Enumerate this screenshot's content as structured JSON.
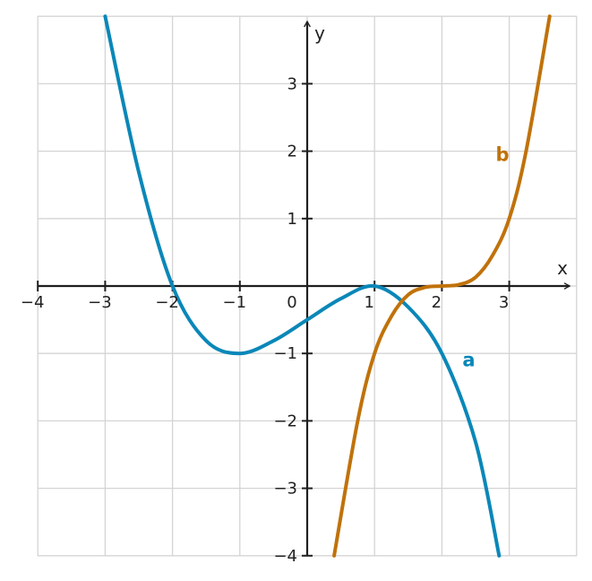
{
  "chart_data": {
    "type": "line",
    "xlabel": "x",
    "ylabel": "y",
    "xlim": [
      -4,
      4
    ],
    "ylim": [
      -4,
      4
    ],
    "x_ticks": [
      -4,
      -3,
      -2,
      -1,
      0,
      1,
      2,
      3
    ],
    "x_tick_labels": [
      "−4",
      "−3",
      "−2",
      "−1",
      "0",
      "1",
      "2",
      "3"
    ],
    "y_ticks": [
      -4,
      -3,
      -2,
      -1,
      1,
      2,
      3
    ],
    "y_tick_labels": [
      "−4",
      "−3",
      "−2",
      "−1",
      "1",
      "2",
      "3"
    ],
    "grid": true,
    "series": [
      {
        "name": "a",
        "color": "#0a87b8",
        "label_at": [
          2.4,
          -1.1
        ],
        "points": [
          [
            -3.0,
            4.0
          ],
          [
            -2.5,
            1.6875
          ],
          [
            -2.0,
            0.0
          ],
          [
            -1.5,
            -0.8125
          ],
          [
            -1.0,
            -1.0
          ],
          [
            -0.5,
            -0.8125
          ],
          [
            0.0,
            -0.5
          ],
          [
            0.5,
            -0.1875
          ],
          [
            1.0,
            0.0
          ],
          [
            1.5,
            -0.3125
          ],
          [
            2.0,
            -1.0
          ],
          [
            2.5,
            -2.3125
          ],
          [
            2.85,
            -4.0
          ]
        ]
      },
      {
        "name": "b",
        "color": "#c0720a",
        "label_at": [
          2.9,
          1.95
        ],
        "points": [
          [
            0.4,
            -4.0
          ],
          [
            0.75,
            -2.0
          ],
          [
            1.0,
            -1.0
          ],
          [
            1.25,
            -0.45
          ],
          [
            1.5,
            -0.13
          ],
          [
            1.75,
            -0.02
          ],
          [
            2.0,
            0.0
          ],
          [
            2.25,
            0.02
          ],
          [
            2.5,
            0.13
          ],
          [
            2.75,
            0.45
          ],
          [
            3.0,
            1.0
          ],
          [
            3.25,
            2.0
          ],
          [
            3.6,
            4.0
          ]
        ]
      }
    ]
  }
}
